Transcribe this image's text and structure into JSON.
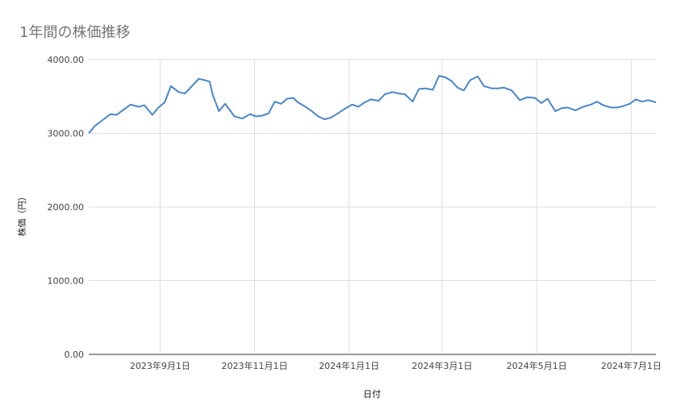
{
  "chart_data": {
    "type": "line",
    "title": "1年間の株価推移",
    "xlabel": "日付",
    "ylabel": "株価（円）",
    "ylim": [
      0,
      4000
    ],
    "yticks": [
      "0.00",
      "1000.00",
      "2000.00",
      "3000.00",
      "4000.00"
    ],
    "xlim": [
      "2023-07-17",
      "2024-07-17"
    ],
    "xticks": [
      {
        "date": "2023-09-01",
        "label": "2023年9月1日"
      },
      {
        "date": "2023-11-01",
        "label": "2023年11月1日"
      },
      {
        "date": "2024-01-01",
        "label": "2024年1月1日"
      },
      {
        "date": "2024-03-01",
        "label": "2024年3月1日"
      },
      {
        "date": "2024-05-01",
        "label": "2024年5月1日"
      },
      {
        "date": "2024-07-01",
        "label": "2024年7月1日"
      }
    ],
    "grid": true,
    "color": "#4a86c8",
    "series": [
      {
        "x": [
          "2023-07-17",
          "2023-07-21",
          "2023-07-26",
          "2023-07-31",
          "2023-08-04",
          "2023-08-09",
          "2023-08-13",
          "2023-08-18",
          "2023-08-22",
          "2023-08-27",
          "2023-08-31",
          "2023-09-04",
          "2023-09-08",
          "2023-09-13",
          "2023-09-17",
          "2023-09-22",
          "2023-09-26",
          "2023-09-30",
          "2023-10-03",
          "2023-10-05",
          "2023-10-09",
          "2023-10-13",
          "2023-10-19",
          "2023-10-24",
          "2023-10-29",
          "2023-11-02",
          "2023-11-06",
          "2023-11-10",
          "2023-11-14",
          "2023-11-18",
          "2023-11-22",
          "2023-11-26",
          "2023-11-29",
          "2023-12-03",
          "2023-12-08",
          "2023-12-12",
          "2023-12-16",
          "2023-12-20",
          "2023-12-24",
          "2023-12-29",
          "2024-01-03",
          "2024-01-07",
          "2024-01-11",
          "2024-01-15",
          "2024-01-20",
          "2024-01-24",
          "2024-01-29",
          "2024-02-02",
          "2024-02-06",
          "2024-02-11",
          "2024-02-15",
          "2024-02-19",
          "2024-02-24",
          "2024-02-28",
          "2024-03-03",
          "2024-03-07",
          "2024-03-11",
          "2024-03-15",
          "2024-03-19",
          "2024-03-24",
          "2024-03-28",
          "2024-04-02",
          "2024-04-06",
          "2024-04-10",
          "2024-04-15",
          "2024-04-20",
          "2024-04-25",
          "2024-04-30",
          "2024-05-04",
          "2024-05-08",
          "2024-05-13",
          "2024-05-17",
          "2024-05-21",
          "2024-05-26",
          "2024-05-31",
          "2024-06-05",
          "2024-06-09",
          "2024-06-13",
          "2024-06-18",
          "2024-06-22",
          "2024-06-26",
          "2024-06-30",
          "2024-07-04",
          "2024-07-08",
          "2024-07-12",
          "2024-07-17"
        ],
        "y": [
          3000,
          3100,
          3180,
          3260,
          3250,
          3330,
          3390,
          3360,
          3380,
          3250,
          3350,
          3420,
          3640,
          3560,
          3540,
          3650,
          3740,
          3720,
          3700,
          3520,
          3300,
          3400,
          3230,
          3200,
          3260,
          3230,
          3240,
          3270,
          3430,
          3400,
          3470,
          3480,
          3420,
          3370,
          3300,
          3230,
          3190,
          3210,
          3260,
          3330,
          3390,
          3360,
          3420,
          3460,
          3440,
          3530,
          3560,
          3540,
          3530,
          3430,
          3600,
          3610,
          3590,
          3780,
          3760,
          3710,
          3620,
          3580,
          3720,
          3770,
          3640,
          3610,
          3610,
          3620,
          3580,
          3450,
          3490,
          3480,
          3410,
          3470,
          3300,
          3340,
          3350,
          3310,
          3360,
          3390,
          3430,
          3380,
          3350,
          3350,
          3370,
          3400,
          3460,
          3430,
          3450,
          3420
        ]
      }
    ]
  }
}
